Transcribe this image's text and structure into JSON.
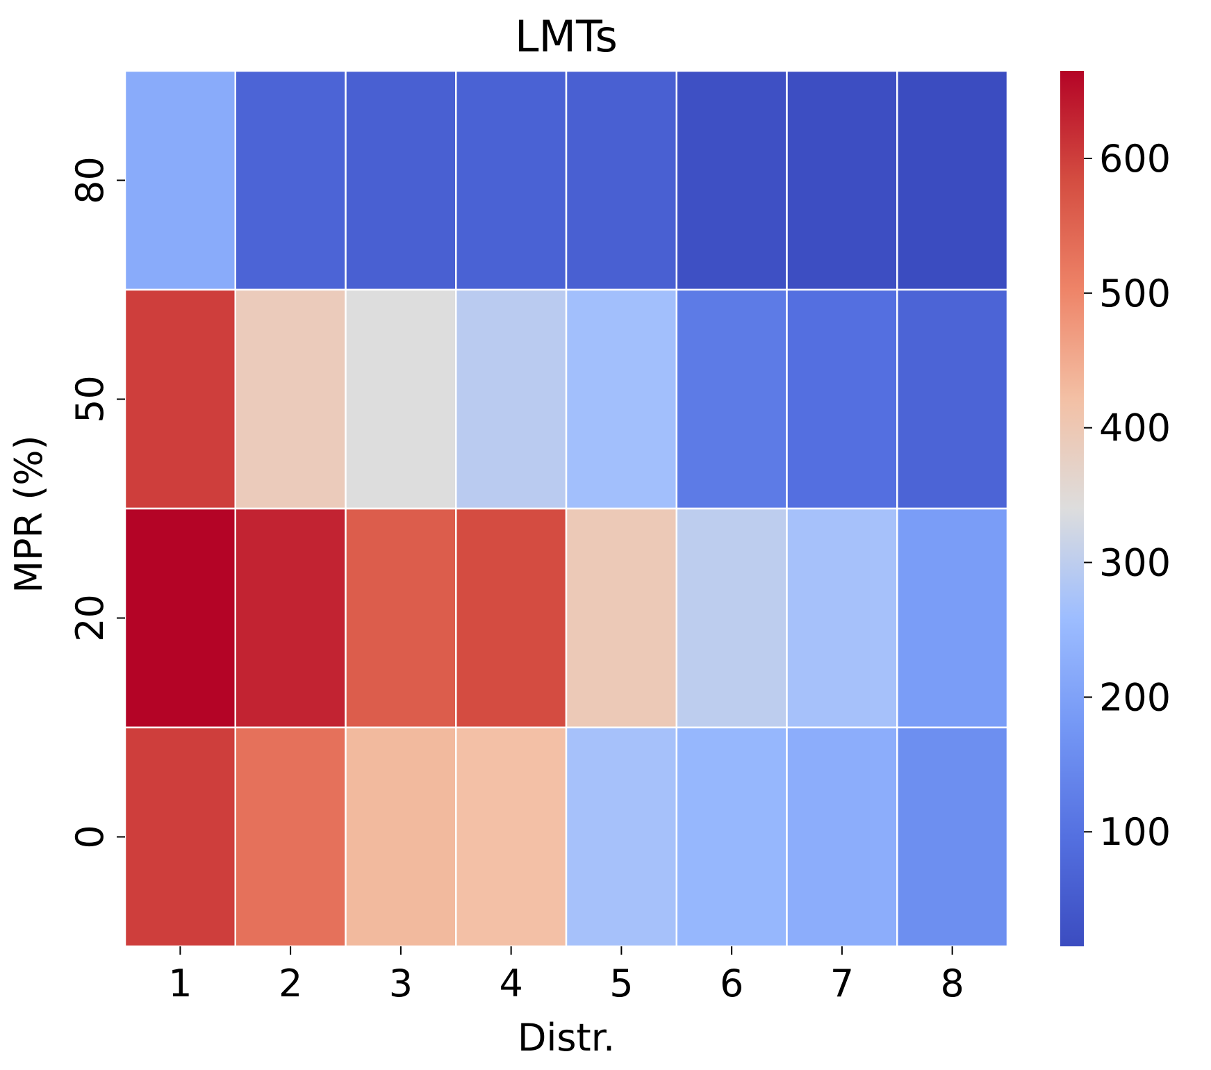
{
  "chart_data": {
    "type": "heatmap",
    "title": "LMTs",
    "xlabel": "Distr.",
    "ylabel": "MPR (%)",
    "x_categories": [
      "1",
      "2",
      "3",
      "4",
      "5",
      "6",
      "7",
      "8"
    ],
    "y_categories": [
      "80",
      "50",
      "20",
      "0"
    ],
    "values": [
      [
        220,
        70,
        60,
        65,
        60,
        25,
        20,
        15
      ],
      [
        600,
        390,
        340,
        295,
        265,
        120,
        95,
        70
      ],
      [
        665,
        630,
        560,
        585,
        395,
        300,
        270,
        190
      ],
      [
        600,
        530,
        430,
        420,
        270,
        245,
        225,
        160
      ]
    ],
    "colormap": "coolwarm",
    "vmin": 15,
    "vmax": 665,
    "colorbar_ticks": [
      "100",
      "200",
      "300",
      "400",
      "500",
      "600"
    ],
    "grid": false
  }
}
